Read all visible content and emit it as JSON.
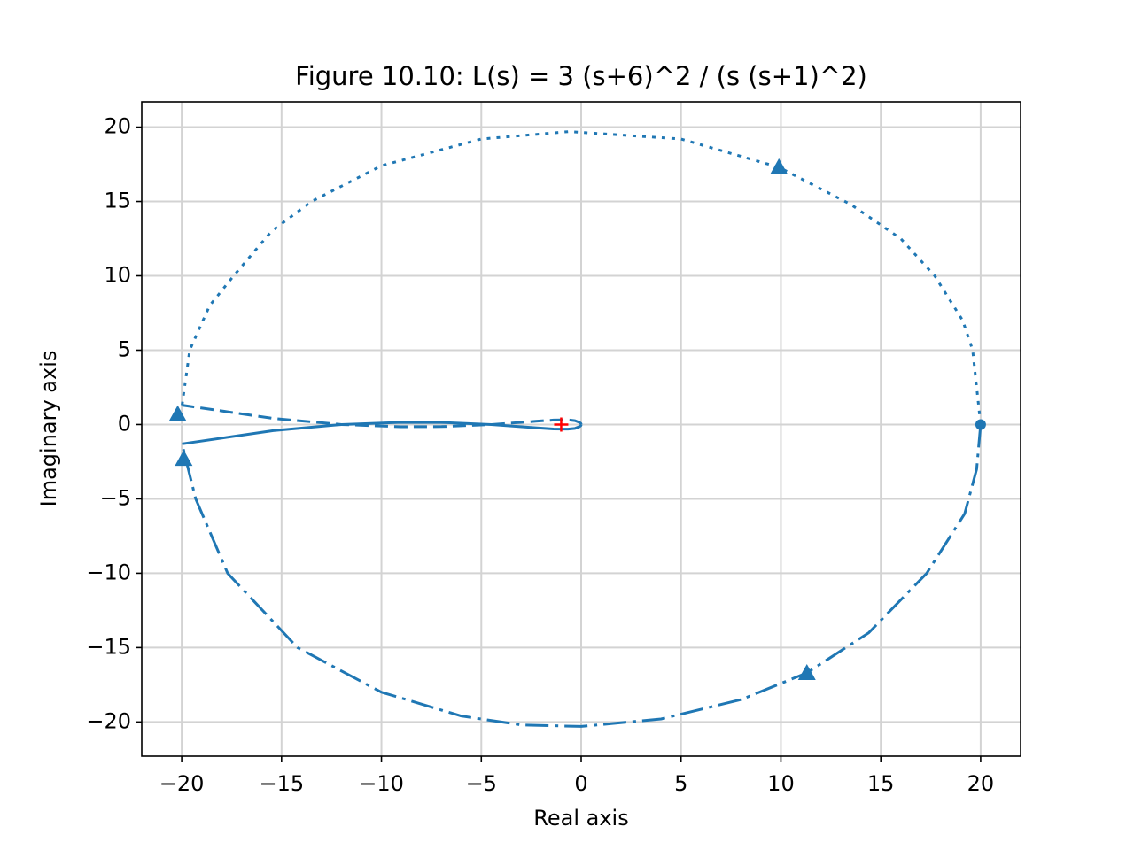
{
  "chart_data": {
    "type": "line",
    "title": "Figure 10.10: L(s) = 3 (s+6)^2 / (s (s+1)^2)",
    "xlabel": "Real axis",
    "ylabel": "Imaginary axis",
    "xlim": [
      -22,
      22
    ],
    "ylim": [
      -22.3,
      21.7
    ],
    "xticks": [
      {
        "value": -20,
        "label": "−20"
      },
      {
        "value": -15,
        "label": "−15"
      },
      {
        "value": -10,
        "label": "−10"
      },
      {
        "value": -5,
        "label": "−5"
      },
      0,
      5,
      10,
      15,
      20
    ],
    "yticks": [
      {
        "value": -20,
        "label": "−20"
      },
      {
        "value": -15,
        "label": "−15"
      },
      {
        "value": -10,
        "label": "−10"
      },
      {
        "value": -5,
        "label": "−5"
      },
      0,
      5,
      10,
      15,
      20
    ],
    "grid": true,
    "series": [
      {
        "color": "#1f77b4",
        "style": "solid",
        "x": [
          -19.98,
          -15.42,
          -12,
          -9.03,
          -6.99,
          -4.5,
          -2.28,
          -1.38,
          -0.66,
          -0.31,
          -0.08,
          -0.01,
          0
        ],
        "y": [
          -1.3,
          -0.41,
          0,
          0.15,
          0.14,
          0,
          -0.22,
          -0.3,
          -0.31,
          -0.26,
          -0.14,
          -0.06,
          0
        ]
      },
      {
        "color": "#1f77b4",
        "style": "dashed",
        "x": [
          0,
          -0.01,
          -0.08,
          -0.31,
          -0.66,
          -1.38,
          -2.28,
          -4.5,
          -6.99,
          -9.03,
          -12,
          -15.42,
          -19.98
        ],
        "y": [
          0,
          0.06,
          0.14,
          0.26,
          0.31,
          0.3,
          0.22,
          0,
          -0.14,
          -0.15,
          0,
          0.41,
          1.3
        ]
      },
      {
        "color": "#1f77b4",
        "style": "dotted",
        "x": [
          -19.98,
          -19.6,
          -18.6,
          -17.4,
          -15.5,
          -13.5,
          -10,
          -5,
          -0.6,
          5,
          9.9,
          13.5,
          16,
          17.7,
          19.1,
          19.6,
          20
        ],
        "y": [
          1.3,
          5,
          8,
          10,
          13,
          15,
          17.4,
          19.2,
          19.7,
          19.2,
          17.3,
          14.8,
          12.5,
          10,
          7,
          5,
          0
        ]
      },
      {
        "color": "#1f77b4",
        "style": "dashdot",
        "x": [
          20,
          19.8,
          19.2,
          17.3,
          14.4,
          11.3,
          8,
          4,
          0,
          -3,
          -6,
          -10,
          -14.2,
          -17.7,
          -19.3,
          -19.8,
          -19.98
        ],
        "y": [
          0,
          -3,
          -6,
          -10,
          -14,
          -16.7,
          -18.5,
          -19.8,
          -20.3,
          -20.2,
          -19.6,
          -18,
          -15,
          -10,
          -5,
          -2.3,
          -1.3
        ]
      }
    ],
    "arrows": {
      "color": "#1f77b4",
      "x": [
        9.9,
        11.3,
        -20.2,
        -19.9
      ],
      "y": [
        17.3,
        -16.7,
        0.7,
        -2.3
      ]
    },
    "start_point": {
      "color": "#1f77b4",
      "x": 20,
      "y": 0
    },
    "critical_point": {
      "color": "#ff0000",
      "x": -1,
      "y": 0
    }
  }
}
